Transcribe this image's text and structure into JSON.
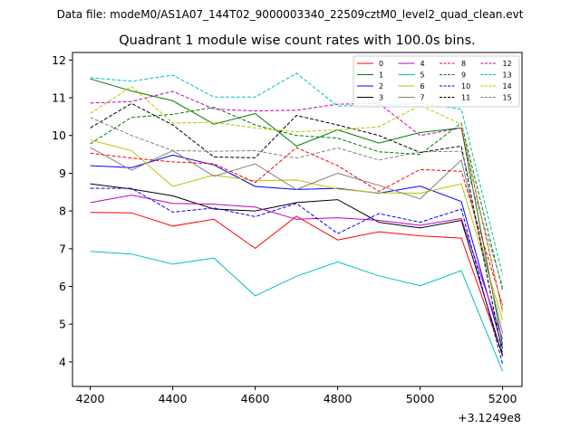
{
  "chart_data": {
    "type": "line",
    "suptitle": "Data file: modeM0/AS1A07_144T02_9000003340_22509cztM0_level2_quad_clean.evt",
    "title": "Quadrant 1 module wise count rates with 100.0s bins.",
    "xlabel": "",
    "ylabel": "",
    "x_offset_label": "+3.1249e8",
    "x_ticks": [
      4200,
      4400,
      4600,
      4800,
      5000,
      5200
    ],
    "x_tick_labels": [
      "4200",
      "4400",
      "4600",
      "4800",
      "5000",
      "5200"
    ],
    "y_ticks": [
      4,
      5,
      6,
      7,
      8,
      9,
      10,
      11,
      12
    ],
    "y_tick_labels": [
      "4",
      "5",
      "6",
      "7",
      "8",
      "9",
      "10",
      "11",
      "12"
    ],
    "xlim": [
      4157,
      5247
    ],
    "ylim": [
      3.35,
      12.2
    ],
    "grid": false,
    "legend_position": "top-right",
    "x": [
      4200,
      4300,
      4400,
      4500,
      4600,
      4700,
      4800,
      4900,
      5000,
      5100,
      5200
    ],
    "series": [
      {
        "name": "0",
        "color": "#ff0000",
        "dash": "solid",
        "values": [
          7.96,
          7.95,
          7.6,
          7.78,
          7.01,
          7.86,
          7.23,
          7.45,
          7.34,
          7.28,
          4.18
        ]
      },
      {
        "name": "1",
        "color": "#008000",
        "dash": "solid",
        "values": [
          11.5,
          11.18,
          10.92,
          10.3,
          10.58,
          9.72,
          10.15,
          9.8,
          10.08,
          10.2,
          4.45
        ]
      },
      {
        "name": "2",
        "color": "#0000ff",
        "dash": "solid",
        "values": [
          9.2,
          9.15,
          9.48,
          9.22,
          8.65,
          8.57,
          8.6,
          8.47,
          8.66,
          8.25,
          4.35
        ]
      },
      {
        "name": "3",
        "color": "#000000",
        "dash": "solid",
        "values": [
          8.72,
          8.58,
          8.4,
          8.05,
          8.0,
          8.22,
          8.3,
          7.7,
          7.55,
          7.75,
          4.15
        ]
      },
      {
        "name": "4",
        "color": "#bf00bf",
        "dash": "solid",
        "values": [
          8.22,
          8.42,
          8.2,
          8.18,
          8.1,
          7.78,
          7.82,
          7.75,
          7.62,
          7.8,
          4.6
        ]
      },
      {
        "name": "5",
        "color": "#00bfbf",
        "dash": "solid",
        "values": [
          6.93,
          6.86,
          6.59,
          6.75,
          5.75,
          6.27,
          6.65,
          6.28,
          6.02,
          6.42,
          3.75
        ]
      },
      {
        "name": "6",
        "color": "#bfbf00",
        "dash": "solid",
        "values": [
          9.88,
          9.6,
          8.65,
          8.95,
          8.8,
          8.82,
          8.58,
          8.48,
          8.47,
          8.72,
          5.1
        ]
      },
      {
        "name": "7",
        "color": "#808080",
        "dash": "solid",
        "values": [
          9.68,
          9.08,
          9.6,
          8.92,
          9.25,
          8.57,
          9.0,
          8.68,
          8.32,
          9.35,
          4.75
        ]
      },
      {
        "name": "8",
        "color": "#ff0000",
        "dash": "dashed",
        "values": [
          9.53,
          9.4,
          9.3,
          9.25,
          8.75,
          9.68,
          9.2,
          8.52,
          9.1,
          9.05,
          5.5
        ]
      },
      {
        "name": "9",
        "color": "#008000",
        "dash": "dashed",
        "values": [
          9.78,
          10.48,
          10.56,
          10.75,
          10.28,
          10.0,
          9.93,
          9.57,
          9.5,
          10.33,
          5.9
        ]
      },
      {
        "name": "10",
        "color": "#0000ff",
        "dash": "dashed",
        "values": [
          8.6,
          8.6,
          7.97,
          8.08,
          7.85,
          8.2,
          7.4,
          7.93,
          7.7,
          8.05,
          3.95
        ]
      },
      {
        "name": "11",
        "color": "#000000",
        "dash": "dashed",
        "values": [
          10.2,
          10.85,
          10.28,
          9.43,
          9.41,
          10.53,
          10.28,
          10.0,
          9.55,
          9.72,
          4.2
        ]
      },
      {
        "name": "12",
        "color": "#bf00bf",
        "dash": "dashed",
        "values": [
          10.86,
          10.9,
          11.17,
          10.7,
          10.65,
          10.67,
          10.83,
          10.85,
          10.0,
          10.2,
          5.35
        ]
      },
      {
        "name": "13",
        "color": "#00bfbf",
        "dash": "dashed",
        "values": [
          11.53,
          11.44,
          11.6,
          11.02,
          11.02,
          11.65,
          10.78,
          10.8,
          10.85,
          10.7,
          6.3
        ]
      },
      {
        "name": "14",
        "color": "#bfbf00",
        "dash": "dashed",
        "values": [
          10.58,
          11.3,
          10.33,
          10.35,
          10.2,
          10.1,
          10.15,
          10.23,
          10.8,
          10.3,
          5.3
        ]
      },
      {
        "name": "15",
        "color": "#808080",
        "dash": "dashed",
        "values": [
          10.48,
          10.0,
          9.6,
          9.58,
          9.6,
          9.4,
          9.67,
          9.35,
          9.57,
          9.58,
          6.0
        ]
      }
    ]
  }
}
